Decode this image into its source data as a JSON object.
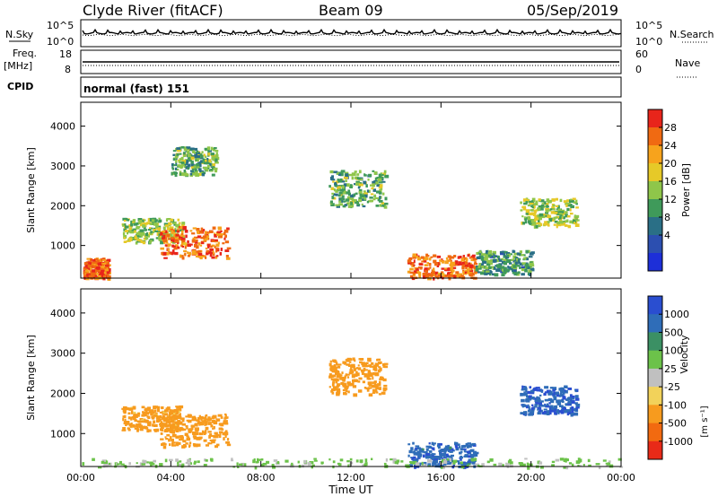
{
  "header": {
    "station": "Clyde River (fitACF)",
    "beam": "Beam 09",
    "date": "05/Sep/2019"
  },
  "strips": {
    "nsky_label": "N.Sky",
    "nsky_ticks": [
      "10^5",
      "10^0"
    ],
    "nsearch_label": "N.Search",
    "nsearch_ticks": [
      "10^5",
      "10^0"
    ],
    "freq_label_1": "Freq.",
    "freq_label_2": "[MHz]",
    "freq_ticks": [
      "18",
      "8"
    ],
    "nave_label": "Nave",
    "nave_ticks": [
      "60",
      "0"
    ],
    "cpid_label": "CPID",
    "cpid_text": "normal (fast) 151"
  },
  "chart_data": [
    {
      "type": "heatmap",
      "title": "",
      "xlabel": "",
      "ylabel": "Slant Range [km]",
      "yticks": [
        "4000",
        "3000",
        "2000",
        "1000"
      ],
      "ylim": [
        180,
        4600
      ],
      "colorbar": {
        "label": "Power [dB]",
        "ticks": [
          "28",
          "24",
          "20",
          "16",
          "12",
          "8",
          "4"
        ],
        "colors": [
          "#e8251b",
          "#f06a12",
          "#f7a31c",
          "#e6c928",
          "#8fc64a",
          "#3f9a5a",
          "#2a6f86",
          "#2c4fb0",
          "#1d2fd8"
        ]
      },
      "regions": [
        {
          "t": [
            0.1,
            1.2
          ],
          "r": [
            200,
            700
          ],
          "power": 26
        },
        {
          "t": [
            1.8,
            4.5
          ],
          "r": [
            1100,
            1700
          ],
          "power": 14
        },
        {
          "t": [
            3.5,
            6.5
          ],
          "r": [
            700,
            1500
          ],
          "power": 24
        },
        {
          "t": [
            4.0,
            6.0
          ],
          "r": [
            2800,
            3500
          ],
          "power": 12
        },
        {
          "t": [
            11.0,
            13.5
          ],
          "r": [
            2000,
            2900
          ],
          "power": 12
        },
        {
          "t": [
            14.5,
            17.5
          ],
          "r": [
            200,
            800
          ],
          "power": 24
        },
        {
          "t": [
            17.5,
            20.0
          ],
          "r": [
            300,
            900
          ],
          "power": 10
        },
        {
          "t": [
            19.5,
            22.0
          ],
          "r": [
            1500,
            2200
          ],
          "power": 14
        }
      ]
    },
    {
      "type": "heatmap",
      "title": "",
      "xlabel": "Time UT",
      "ylabel": "Slant Range [km]",
      "xticks": [
        "00:00",
        "04:00",
        "08:00",
        "12:00",
        "16:00",
        "20:00",
        "00:00"
      ],
      "yticks": [
        "4000",
        "3000",
        "2000",
        "1000"
      ],
      "ylim": [
        180,
        4600
      ],
      "colorbar": {
        "label": "Velocity",
        "unit": "[m s⁻¹]",
        "ticks": [
          "1000",
          "500",
          "100",
          "25",
          "-25",
          "-100",
          "-500",
          "-1000"
        ],
        "colors": [
          "#2a4ed0",
          "#2f6db8",
          "#3b9064",
          "#6cc24a",
          "#c0c0c0",
          "#f2d25a",
          "#f79b1e",
          "#f26a10",
          "#e82a18"
        ]
      },
      "regions": [
        {
          "t": [
            1.8,
            4.5
          ],
          "r": [
            1100,
            1700
          ],
          "velocity": -150
        },
        {
          "t": [
            3.5,
            6.5
          ],
          "r": [
            700,
            1500
          ],
          "velocity": -200
        },
        {
          "t": [
            11.0,
            13.5
          ],
          "r": [
            2000,
            2900
          ],
          "velocity": -250
        },
        {
          "t": [
            14.5,
            17.5
          ],
          "r": [
            200,
            800
          ],
          "velocity": 800
        },
        {
          "t": [
            19.5,
            22.0
          ],
          "r": [
            1500,
            2200
          ],
          "velocity": 900
        },
        {
          "t": [
            0.0,
            24.0
          ],
          "r": [
            180,
            400
          ],
          "velocity": 30
        }
      ]
    }
  ]
}
